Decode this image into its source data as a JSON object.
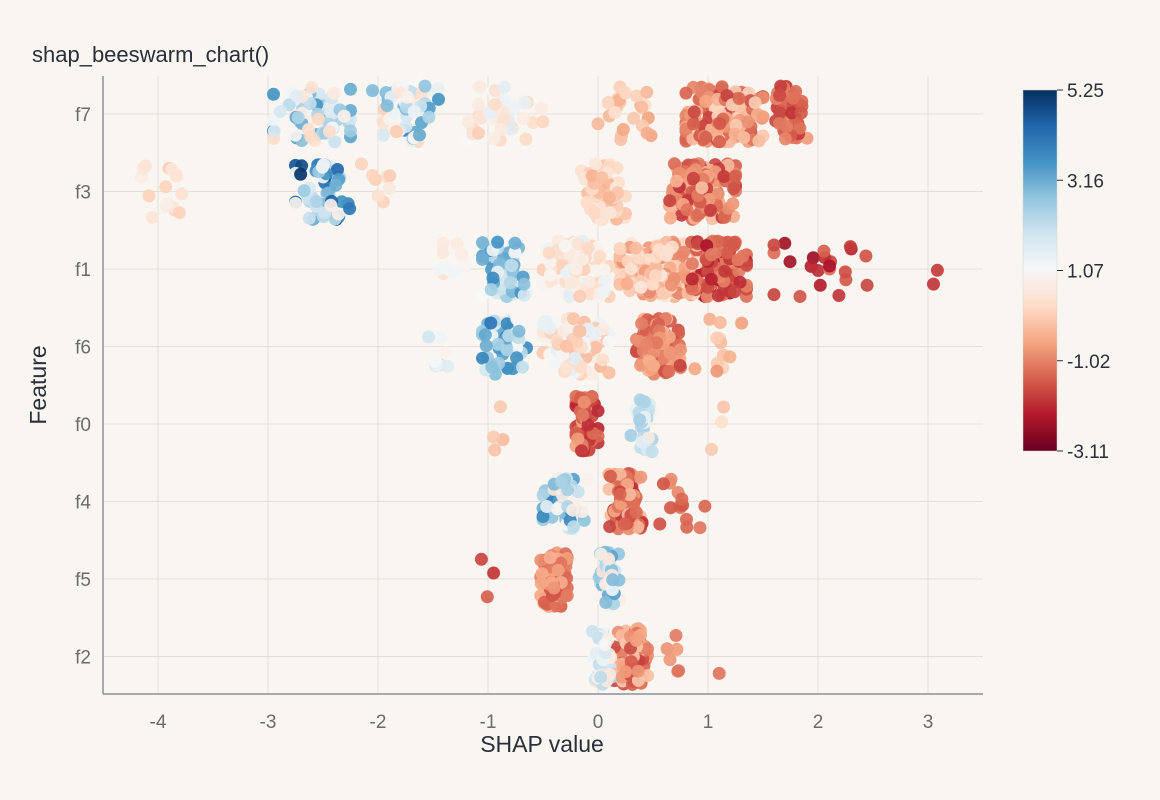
{
  "chart_data": {
    "type": "scatter",
    "subtype": "beeswarm",
    "title": "shap_beeswarm_chart()",
    "xlabel": "SHAP value",
    "ylabel": "Feature",
    "xlim": [
      -4.5,
      3.5
    ],
    "xticks": [
      -4,
      -3,
      -2,
      -1,
      0,
      1,
      2,
      3
    ],
    "categories": [
      "f7",
      "f3",
      "f1",
      "f6",
      "f0",
      "f4",
      "f5",
      "f2"
    ],
    "grid": true,
    "legend": "none",
    "colorbar": {
      "position": "right",
      "min": -3.11,
      "max": 5.25,
      "ticks": [
        5.25,
        3.16,
        1.07,
        -1.02,
        -3.11
      ],
      "colorscale": [
        "#67001f",
        "#b2182b",
        "#d6604d",
        "#f4a582",
        "#fddbc7",
        "#f7f7f7",
        "#d1e5f0",
        "#92c5de",
        "#4393c3",
        "#2166ac",
        "#053061"
      ]
    },
    "features": [
      {
        "name": "f7",
        "clusters": [
          {
            "center": -2.6,
            "spread": 0.35,
            "count": 70,
            "value_range": [
              0.2,
              3.6
            ]
          },
          {
            "center": -1.75,
            "spread": 0.3,
            "count": 55,
            "value_range": [
              0.0,
              3.8
            ]
          },
          {
            "center": -0.85,
            "spread": 0.35,
            "count": 40,
            "value_range": [
              0.0,
              1.6
            ]
          },
          {
            "center": 0.25,
            "spread": 0.25,
            "count": 25,
            "value_range": [
              -0.6,
              0.4
            ]
          },
          {
            "center": 1.15,
            "spread": 0.35,
            "count": 170,
            "value_range": [
              -1.8,
              0.2
            ]
          },
          {
            "center": 1.75,
            "spread": 0.15,
            "count": 50,
            "value_range": [
              -2.0,
              -0.6
            ]
          }
        ]
      },
      {
        "name": "f3",
        "clusters": [
          {
            "center": -3.9,
            "spread": 0.25,
            "count": 16,
            "value_range": [
              0.0,
              0.8
            ]
          },
          {
            "center": -2.5,
            "spread": 0.25,
            "count": 60,
            "value_range": [
              0.6,
              5.2
            ]
          },
          {
            "center": -2.0,
            "spread": 0.15,
            "count": 8,
            "value_range": [
              0.0,
              0.8
            ]
          },
          {
            "center": 0.05,
            "spread": 0.2,
            "count": 70,
            "value_range": [
              -0.4,
              0.6
            ]
          },
          {
            "center": 0.95,
            "spread": 0.3,
            "count": 150,
            "value_range": [
              -2.0,
              -0.2
            ]
          }
        ]
      },
      {
        "name": "f1",
        "clusters": [
          {
            "center": -1.3,
            "spread": 0.15,
            "count": 10,
            "value_range": [
              0.4,
              1.6
            ]
          },
          {
            "center": -0.85,
            "spread": 0.2,
            "count": 45,
            "value_range": [
              1.0,
              4.0
            ]
          },
          {
            "center": -0.2,
            "spread": 0.3,
            "count": 120,
            "value_range": [
              0.0,
              1.6
            ]
          },
          {
            "center": 0.55,
            "spread": 0.35,
            "count": 160,
            "value_range": [
              -1.0,
              0.6
            ]
          },
          {
            "center": 1.1,
            "spread": 0.25,
            "count": 100,
            "value_range": [
              -2.4,
              -0.8
            ]
          },
          {
            "center": 2.05,
            "spread": 0.45,
            "count": 22,
            "value_range": [
              -2.6,
              -1.2
            ]
          },
          {
            "center": 3.15,
            "spread": 0.15,
            "count": 2,
            "value_range": [
              -2.0,
              -1.8
            ]
          }
        ]
      },
      {
        "name": "f6",
        "clusters": [
          {
            "center": -1.45,
            "spread": 0.15,
            "count": 8,
            "value_range": [
              0.6,
              2.2
            ]
          },
          {
            "center": -0.85,
            "spread": 0.2,
            "count": 50,
            "value_range": [
              0.6,
              4.2
            ]
          },
          {
            "center": -0.2,
            "spread": 0.3,
            "count": 110,
            "value_range": [
              -0.4,
              1.6
            ]
          },
          {
            "center": 0.55,
            "spread": 0.2,
            "count": 100,
            "value_range": [
              -1.8,
              -0.2
            ]
          },
          {
            "center": 1.1,
            "spread": 0.25,
            "count": 12,
            "value_range": [
              -0.8,
              0.2
            ]
          }
        ]
      },
      {
        "name": "f0",
        "clusters": [
          {
            "center": -0.9,
            "spread": 0.1,
            "count": 4,
            "value_range": [
              -0.4,
              0.2
            ]
          },
          {
            "center": -0.1,
            "spread": 0.1,
            "count": 70,
            "value_range": [
              -2.2,
              -0.6
            ]
          },
          {
            "center": 0.4,
            "spread": 0.1,
            "count": 35,
            "value_range": [
              0.6,
              2.8
            ]
          },
          {
            "center": 1.1,
            "spread": 0.15,
            "count": 3,
            "value_range": [
              -0.2,
              0.4
            ]
          }
        ]
      },
      {
        "name": "f4",
        "clusters": [
          {
            "center": -0.3,
            "spread": 0.2,
            "count": 55,
            "value_range": [
              0.4,
              4.0
            ]
          },
          {
            "center": 0.25,
            "spread": 0.15,
            "count": 95,
            "value_range": [
              -2.0,
              -0.2
            ]
          },
          {
            "center": 0.7,
            "spread": 0.15,
            "count": 12,
            "value_range": [
              -1.8,
              -0.8
            ]
          },
          {
            "center": 0.95,
            "spread": 0.05,
            "count": 2,
            "value_range": [
              -1.4,
              -1.0
            ]
          }
        ]
      },
      {
        "name": "f5",
        "clusters": [
          {
            "center": -1.0,
            "spread": 0.08,
            "count": 3,
            "value_range": [
              -2.0,
              -1.4
            ]
          },
          {
            "center": -0.4,
            "spread": 0.12,
            "count": 110,
            "value_range": [
              -1.6,
              -0.4
            ]
          },
          {
            "center": 0.1,
            "spread": 0.1,
            "count": 55,
            "value_range": [
              0.4,
              3.4
            ]
          }
        ]
      },
      {
        "name": "f2",
        "clusters": [
          {
            "center": 0.05,
            "spread": 0.1,
            "count": 55,
            "value_range": [
              0.4,
              2.4
            ]
          },
          {
            "center": 0.3,
            "spread": 0.15,
            "count": 110,
            "value_range": [
              -1.8,
              0.0
            ]
          },
          {
            "center": 0.7,
            "spread": 0.1,
            "count": 6,
            "value_range": [
              -1.4,
              -0.6
            ]
          },
          {
            "center": 1.1,
            "spread": 0.03,
            "count": 1,
            "value_range": [
              -1.2,
              -1.2
            ]
          }
        ]
      }
    ]
  }
}
